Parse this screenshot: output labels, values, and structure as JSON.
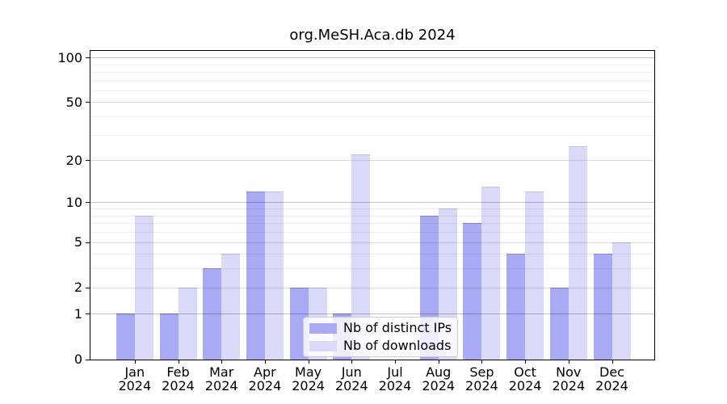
{
  "chart_data": {
    "type": "bar",
    "title": "org.MeSH.Aca.db 2024",
    "categories": [
      "Jan 2024",
      "Feb 2024",
      "Mar 2024",
      "Apr 2024",
      "May 2024",
      "Jun 2024",
      "Jul 2024",
      "Aug 2024",
      "Sep 2024",
      "Oct 2024",
      "Nov 2024",
      "Dec 2024"
    ],
    "series": [
      {
        "key": "distinct-ips",
        "name": "Nb of distinct IPs",
        "color": "#a9a9f4",
        "edge_color": "#8d8dd9",
        "values": [
          1,
          1,
          3,
          12,
          2,
          1,
          0,
          8,
          7,
          4,
          2,
          4
        ]
      },
      {
        "key": "downloads",
        "name": "Nb of downloads",
        "color": "#d9d9f8",
        "edge_color": "#c3c3ea",
        "values": [
          8,
          2,
          4,
          12,
          2,
          22,
          0,
          9,
          13,
          12,
          25,
          5
        ]
      }
    ],
    "yscale": "log1p",
    "ylim": [
      0,
      113
    ],
    "xlabel": "",
    "ylabel": "",
    "y_ticks": [
      {
        "value": 0,
        "label": "0"
      },
      {
        "value": 1,
        "label": "1"
      },
      {
        "value": 2,
        "label": "2"
      },
      {
        "value": 5,
        "label": "5"
      },
      {
        "value": 10,
        "label": "10"
      },
      {
        "value": 20,
        "label": "20"
      },
      {
        "value": 50,
        "label": "50"
      },
      {
        "value": 100,
        "label": "100"
      }
    ],
    "y_gridlines": {
      "major": [
        1,
        10,
        100
      ],
      "mid": [
        2,
        5,
        20,
        50
      ],
      "minor": [
        3,
        4,
        6,
        7,
        8,
        9,
        30,
        40,
        60,
        70,
        80,
        90
      ]
    },
    "grid": "horizontal",
    "legend_position": "lower center"
  }
}
